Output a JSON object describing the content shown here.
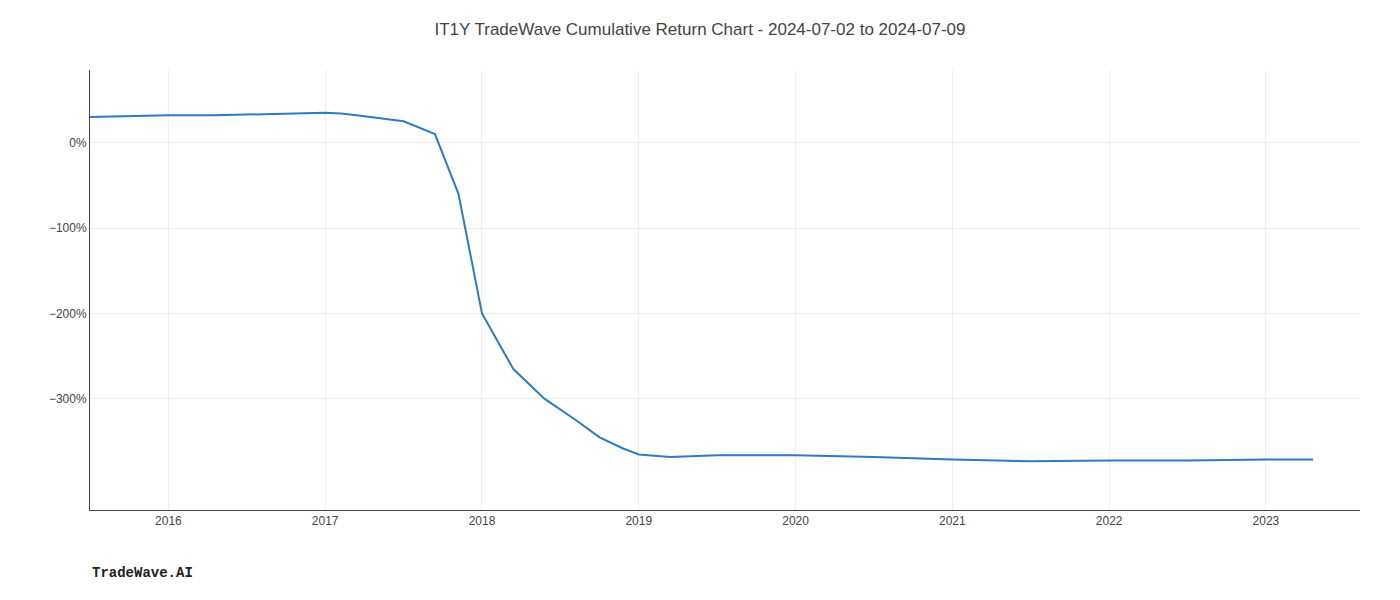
{
  "chart_data": {
    "type": "line",
    "title": "IT1Y TradeWave Cumulative Return Chart - 2024-07-02 to 2024-07-09",
    "annotations": [
      "TradeWave.AI"
    ],
    "x": [
      2015.5,
      2016.0,
      2016.3,
      2016.6,
      2017.0,
      2017.1,
      2017.2,
      2017.5,
      2017.7,
      2017.85,
      2018.0,
      2018.2,
      2018.4,
      2018.6,
      2018.75,
      2018.9,
      2019.0,
      2019.2,
      2019.5,
      2020.0,
      2020.5,
      2021.0,
      2021.5,
      2022.0,
      2022.5,
      2023.0,
      2023.3
    ],
    "values": [
      30,
      32,
      32,
      33,
      35,
      34,
      32,
      25,
      10,
      -60,
      -200,
      -265,
      -300,
      -325,
      -345,
      -358,
      -365,
      -368,
      -366,
      -366,
      -368,
      -371,
      -373,
      -372,
      -372,
      -371,
      -371
    ],
    "color": "#2e7bbf",
    "xlim": [
      2015.5,
      2023.6
    ],
    "ylim": [
      -430,
      85
    ],
    "xticks": [
      2016,
      2017,
      2018,
      2019,
      2020,
      2021,
      2022,
      2023
    ],
    "yticks": [
      {
        "value": 0,
        "label": "0%"
      },
      {
        "value": -100,
        "label": "−100%"
      },
      {
        "value": -200,
        "label": "−200%"
      },
      {
        "value": -300,
        "label": "−300%"
      }
    ],
    "grid": true
  }
}
